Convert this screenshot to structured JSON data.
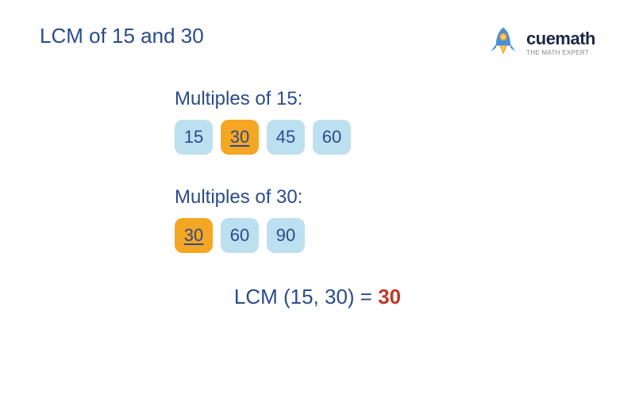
{
  "title": "LCM of 15 and 30",
  "logo": {
    "brand": "cuemath",
    "tagline": "THE MATH EXPERT"
  },
  "colors": {
    "primary_blue": "#2a4b8d",
    "chip_light": "#bde0f0",
    "chip_highlight": "#f5a623",
    "chip_text": "#2a4b8d",
    "result_highlight": "#c0392b",
    "rocket_body": "#4a90d9",
    "rocket_window": "#f5a623",
    "rocket_flame": "#f5a623"
  },
  "sections": [
    {
      "label": "Multiples of 15:",
      "multiples": [
        {
          "value": "15",
          "highlighted": false
        },
        {
          "value": "30",
          "highlighted": true
        },
        {
          "value": "45",
          "highlighted": false
        },
        {
          "value": "60",
          "highlighted": false
        }
      ]
    },
    {
      "label": "Multiples of 30:",
      "multiples": [
        {
          "value": "30",
          "highlighted": true
        },
        {
          "value": "60",
          "highlighted": false
        },
        {
          "value": "90",
          "highlighted": false
        }
      ]
    }
  ],
  "result": {
    "prefix": "LCM (15, 30) = ",
    "value": "30"
  },
  "typography": {
    "title_fontsize": 26,
    "section_label_fontsize": 24,
    "chip_fontsize": 22,
    "result_fontsize": 26
  }
}
